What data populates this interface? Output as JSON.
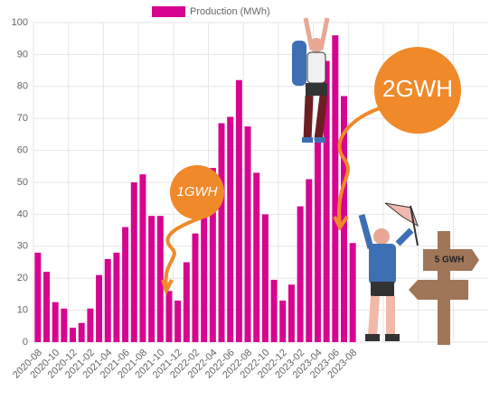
{
  "chart_data": {
    "type": "bar",
    "series": [
      {
        "name": "Production (MWh)",
        "color": "#d6048e",
        "values": [
          28,
          22,
          12.5,
          10.5,
          4.5,
          6,
          10.5,
          21,
          26,
          28,
          36,
          50,
          52.5,
          39.5,
          39.5,
          16,
          13,
          25,
          34,
          41,
          54.5,
          68.5,
          70.5,
          82,
          67.5,
          53,
          40,
          19.5,
          13,
          18,
          42.5,
          51,
          65,
          88,
          96,
          77,
          31
        ]
      }
    ],
    "categories": [
      "2020-08",
      null,
      "2020-10",
      null,
      "2020-12",
      null,
      "2021-02",
      null,
      "2021-04",
      null,
      "2021-06",
      null,
      "2021-08",
      null,
      "2021-10",
      null,
      "2021-12",
      null,
      "2022-02",
      null,
      "2022-04",
      null,
      "2022-06",
      null,
      "2022-08",
      null,
      "2022-10",
      null,
      "2022-12",
      null,
      "2023-02",
      null,
      "2023-04",
      null,
      "2023-06",
      null,
      "2023-08"
    ],
    "ylim": [
      0,
      100
    ],
    "yticks": [
      0,
      10,
      20,
      30,
      40,
      50,
      60,
      70,
      80,
      90,
      100
    ],
    "grid": true,
    "legend": "top",
    "annotations": [
      "1GWH",
      "2GWH",
      "5 GWH"
    ]
  }
}
